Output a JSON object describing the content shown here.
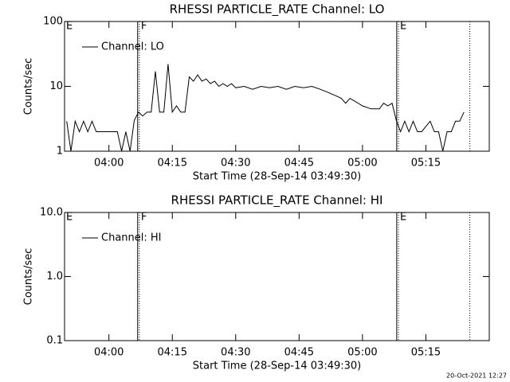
{
  "chart_data": [
    {
      "type": "line",
      "title": "RHESSI PARTICLE_RATE Channel: LO",
      "x_label": "Start Time (28-Sep-14 03:49:30)",
      "y_label": "Counts/sec",
      "y_log": true,
      "ylim": [
        1,
        100
      ],
      "yticks": [
        1,
        10,
        100
      ],
      "xlim": [
        "03:49:30",
        "05:30:00"
      ],
      "xticks": [
        "04:00",
        "04:15",
        "04:30",
        "04:45",
        "05:00",
        "05:15"
      ],
      "series": [
        {
          "name": "Channel: LO",
          "color": "#000000",
          "x": [
            "03:50",
            "03:51",
            "03:52",
            "03:53",
            "03:54",
            "03:55",
            "03:56",
            "03:57",
            "03:58",
            "03:59",
            "04:00",
            "04:01",
            "04:02",
            "04:03",
            "04:04",
            "04:05",
            "04:06",
            "04:07",
            "04:08",
            "04:09",
            "04:10",
            "04:11",
            "04:12",
            "04:13",
            "04:14",
            "04:15",
            "04:16",
            "04:17",
            "04:18",
            "04:19",
            "04:20",
            "04:21",
            "04:22",
            "04:23",
            "04:24",
            "04:25",
            "04:26",
            "04:27",
            "04:28",
            "04:29",
            "04:30",
            "04:32",
            "04:34",
            "04:36",
            "04:38",
            "04:40",
            "04:42",
            "04:44",
            "04:46",
            "04:48",
            "04:50",
            "04:52",
            "04:54",
            "04:55",
            "04:56",
            "04:57",
            "04:58",
            "05:00",
            "05:02",
            "05:04",
            "05:05",
            "05:06",
            "05:07",
            "05:08",
            "05:09",
            "05:10",
            "05:11",
            "05:12",
            "05:13",
            "05:14",
            "05:16",
            "05:17",
            "05:18",
            "05:19",
            "05:20",
            "05:21",
            "05:22",
            "05:23",
            "05:24"
          ],
          "values": [
            2.9,
            1.0,
            2.9,
            2.0,
            2.9,
            2.0,
            2.9,
            2.0,
            2.0,
            2.0,
            2.0,
            2.0,
            2.0,
            1.0,
            2.0,
            1.0,
            3.0,
            4.0,
            3.5,
            4.0,
            4.0,
            17,
            4.0,
            4.0,
            22,
            4.0,
            5.0,
            4.0,
            4.0,
            14,
            12,
            15,
            12,
            13,
            11,
            12,
            10,
            11,
            10,
            11,
            9.5,
            10,
            9,
            10,
            9.5,
            10,
            9,
            10,
            9.5,
            10,
            9,
            8,
            7,
            6.5,
            5.5,
            6.5,
            6,
            5,
            4.5,
            4.5,
            5.5,
            5,
            5.5,
            3.0,
            2.0,
            2.9,
            2.0,
            2.9,
            2.0,
            2.0,
            2.9,
            2.0,
            2.0,
            1.0,
            2.0,
            2.0,
            2.9,
            2.9,
            4.0
          ]
        }
      ],
      "vlines": [
        {
          "x": "04:06:48",
          "style": "solid"
        },
        {
          "x": "04:07:12",
          "style": "dotted"
        },
        {
          "x": "05:08:06",
          "style": "solid"
        },
        {
          "x": "05:08:30",
          "style": "dotted"
        },
        {
          "x": "05:25:24",
          "style": "dotted"
        }
      ],
      "flags": [
        {
          "label": "E",
          "x": "03:49:30"
        },
        {
          "label": "F",
          "x": "04:07:12"
        },
        {
          "label": "E",
          "x": "05:08:30"
        }
      ]
    },
    {
      "type": "line",
      "title": "RHESSI PARTICLE_RATE Channel: HI",
      "x_label": "Start Time (28-Sep-14 03:49:30)",
      "y_label": "Counts/sec",
      "y_log": true,
      "ylim": [
        0.1,
        10
      ],
      "yticks": [
        0.1,
        {
          "value": 1,
          "label": "1.0"
        },
        {
          "value": 10,
          "label": "10.0"
        }
      ],
      "xlim": [
        "03:49:30",
        "05:30:00"
      ],
      "xticks": [
        "04:00",
        "04:15",
        "04:30",
        "04:45",
        "05:00",
        "05:15"
      ],
      "series": [
        {
          "name": "Channel: HI",
          "color": "#000000",
          "x": [],
          "values": []
        }
      ],
      "vlines": [
        {
          "x": "04:06:48",
          "style": "solid"
        },
        {
          "x": "04:07:12",
          "style": "dotted"
        },
        {
          "x": "05:08:06",
          "style": "solid"
        },
        {
          "x": "05:08:30",
          "style": "dotted"
        },
        {
          "x": "05:25:24",
          "style": "dotted"
        }
      ],
      "flags": [
        {
          "label": "E",
          "x": "03:49:30"
        },
        {
          "label": "F",
          "x": "04:07:12"
        },
        {
          "label": "E",
          "x": "05:08:30"
        }
      ]
    }
  ],
  "timestamp": "20-Oct-2021 12:27"
}
